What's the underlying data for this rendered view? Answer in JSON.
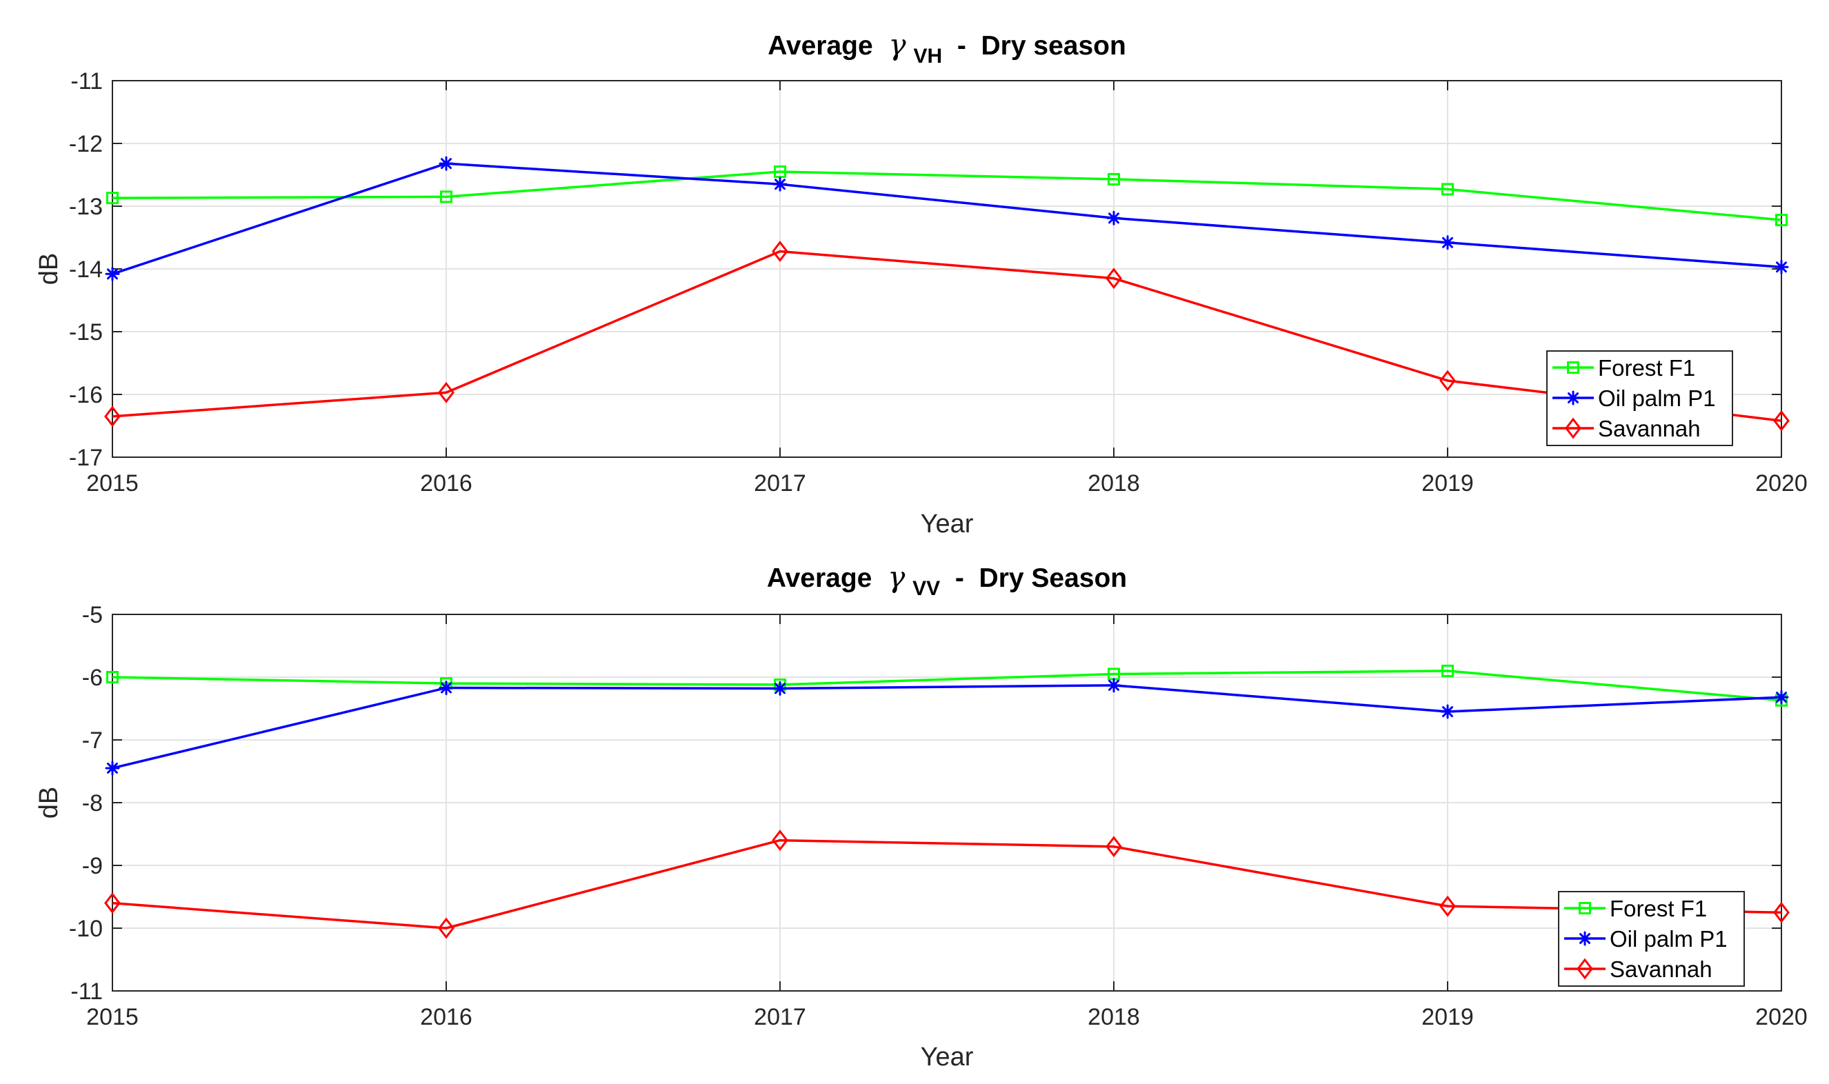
{
  "chart_data": [
    {
      "type": "line",
      "title": {
        "prefix": "Average",
        "symbol": "γ",
        "subscript": "VH",
        "suffix": " -  Dry season"
      },
      "xlabel": "Year",
      "ylabel": "dB",
      "x": [
        2015,
        2016,
        2017,
        2018,
        2019,
        2020
      ],
      "xticks": [
        "2015",
        "2016",
        "2017",
        "2018",
        "2019",
        "2020"
      ],
      "ylim": [
        -17,
        -11
      ],
      "yticks": [
        "-11",
        "-12",
        "-13",
        "-14",
        "-15",
        "-16",
        "-17"
      ],
      "grid": true,
      "legend_location": "bottom-right",
      "series": [
        {
          "name": "Forest F1",
          "color": "#00ff00",
          "marker": "square",
          "values": [
            -12.87,
            -12.85,
            -12.45,
            -12.57,
            -12.73,
            -13.22
          ]
        },
        {
          "name": "Oil palm P1",
          "color": "#0000ff",
          "marker": "asterisk",
          "values": [
            -14.08,
            -12.32,
            -12.65,
            -13.19,
            -13.58,
            -13.97
          ]
        },
        {
          "name": "Savannah",
          "color": "#ff0000",
          "marker": "diamond",
          "values": [
            -16.35,
            -15.97,
            -13.72,
            -14.15,
            -15.78,
            -16.42
          ]
        }
      ]
    },
    {
      "type": "line",
      "title": {
        "prefix": "Average",
        "symbol": "γ",
        "subscript": "VV",
        "suffix": " -  Dry Season"
      },
      "xlabel": "Year",
      "ylabel": "dB",
      "x": [
        2015,
        2016,
        2017,
        2018,
        2019,
        2020
      ],
      "xticks": [
        "2015",
        "2016",
        "2017",
        "2018",
        "2019",
        "2020"
      ],
      "ylim": [
        -11,
        -5
      ],
      "yticks": [
        "-5",
        "-6",
        "-7",
        "-8",
        "-9",
        "-10",
        "-11"
      ],
      "grid": true,
      "legend_location": "bottom-right",
      "series": [
        {
          "name": "Forest F1",
          "color": "#00ff00",
          "marker": "square",
          "values": [
            -6.0,
            -6.1,
            -6.12,
            -5.95,
            -5.9,
            -6.37
          ]
        },
        {
          "name": "Oil palm P1",
          "color": "#0000ff",
          "marker": "asterisk",
          "values": [
            -7.45,
            -6.17,
            -6.18,
            -6.13,
            -6.55,
            -6.32
          ]
        },
        {
          "name": "Savannah",
          "color": "#ff0000",
          "marker": "diamond",
          "values": [
            -9.6,
            -10.0,
            -8.6,
            -8.7,
            -9.65,
            -9.75
          ]
        }
      ]
    }
  ]
}
